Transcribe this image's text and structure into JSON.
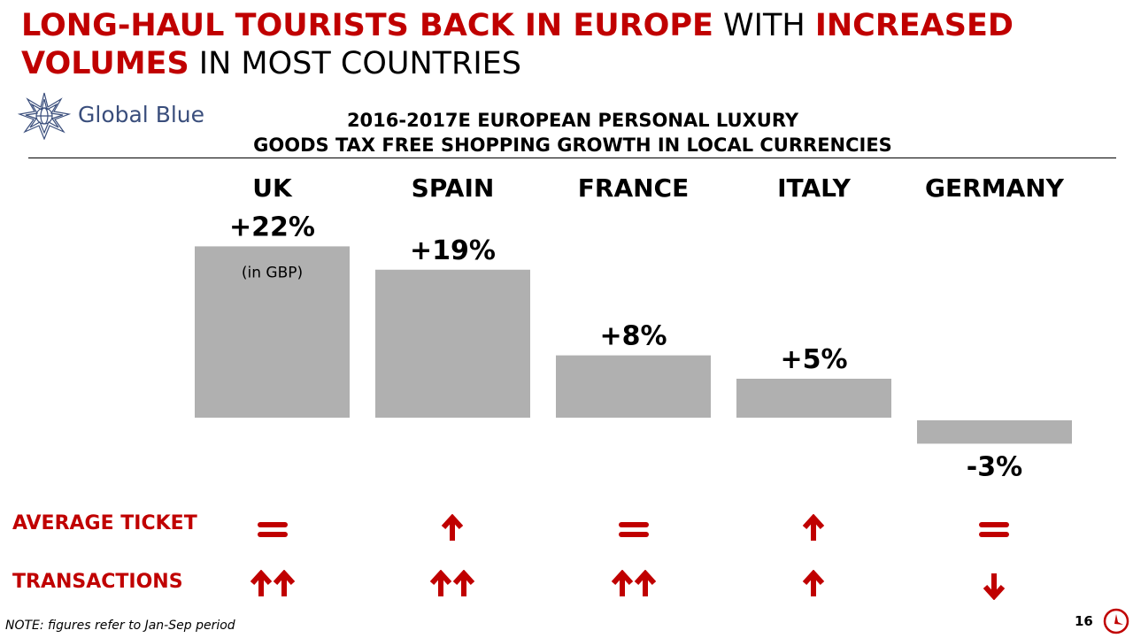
{
  "headline": {
    "part1": "LONG-HAUL TOURISTS BACK IN EUROPE",
    "part2": " WITH ",
    "part3": "INCREASED VOLUMES",
    "part4": " IN MOST COUNTRIES"
  },
  "logo": {
    "text": "Global Blue",
    "icon": "global-blue-star-logo"
  },
  "chart_data": {
    "type": "bar",
    "title": "2016-2017E EUROPEAN PERSONAL LUXURY GOODS TAX FREE SHOPPING GROWTH IN LOCAL CURRENCIES",
    "title_line1": "2016-2017E EUROPEAN PERSONAL LUXURY",
    "title_line2": "GOODS TAX FREE SHOPPING GROWTH IN LOCAL CURRENCIES",
    "categories": [
      "UK",
      "SPAIN",
      "FRANCE",
      "ITALY",
      "GERMANY"
    ],
    "values": [
      22,
      19,
      8,
      5,
      -3
    ],
    "value_labels": [
      "+22%",
      "+19%",
      "+8%",
      "+5%",
      "-3%"
    ],
    "unit": "%",
    "bar_notes": [
      "(in GBP)",
      "",
      "",
      "",
      ""
    ],
    "bar_color": "#b0b0b0",
    "grid": false,
    "legend": "none"
  },
  "metrics": [
    {
      "label": "AVERAGE TICKET",
      "indicators": [
        "equal",
        "up",
        "equal",
        "up",
        "equal"
      ]
    },
    {
      "label": "TRANSACTIONS",
      "indicators": [
        "double-up",
        "double-up",
        "double-up",
        "up",
        "down"
      ]
    }
  ],
  "colors": {
    "accent": "#c00000",
    "bar": "#b0b0b0",
    "logo": "#3a4e7c"
  },
  "footnote": "NOTE: figures refer to Jan-Sep period",
  "page_number": "16"
}
